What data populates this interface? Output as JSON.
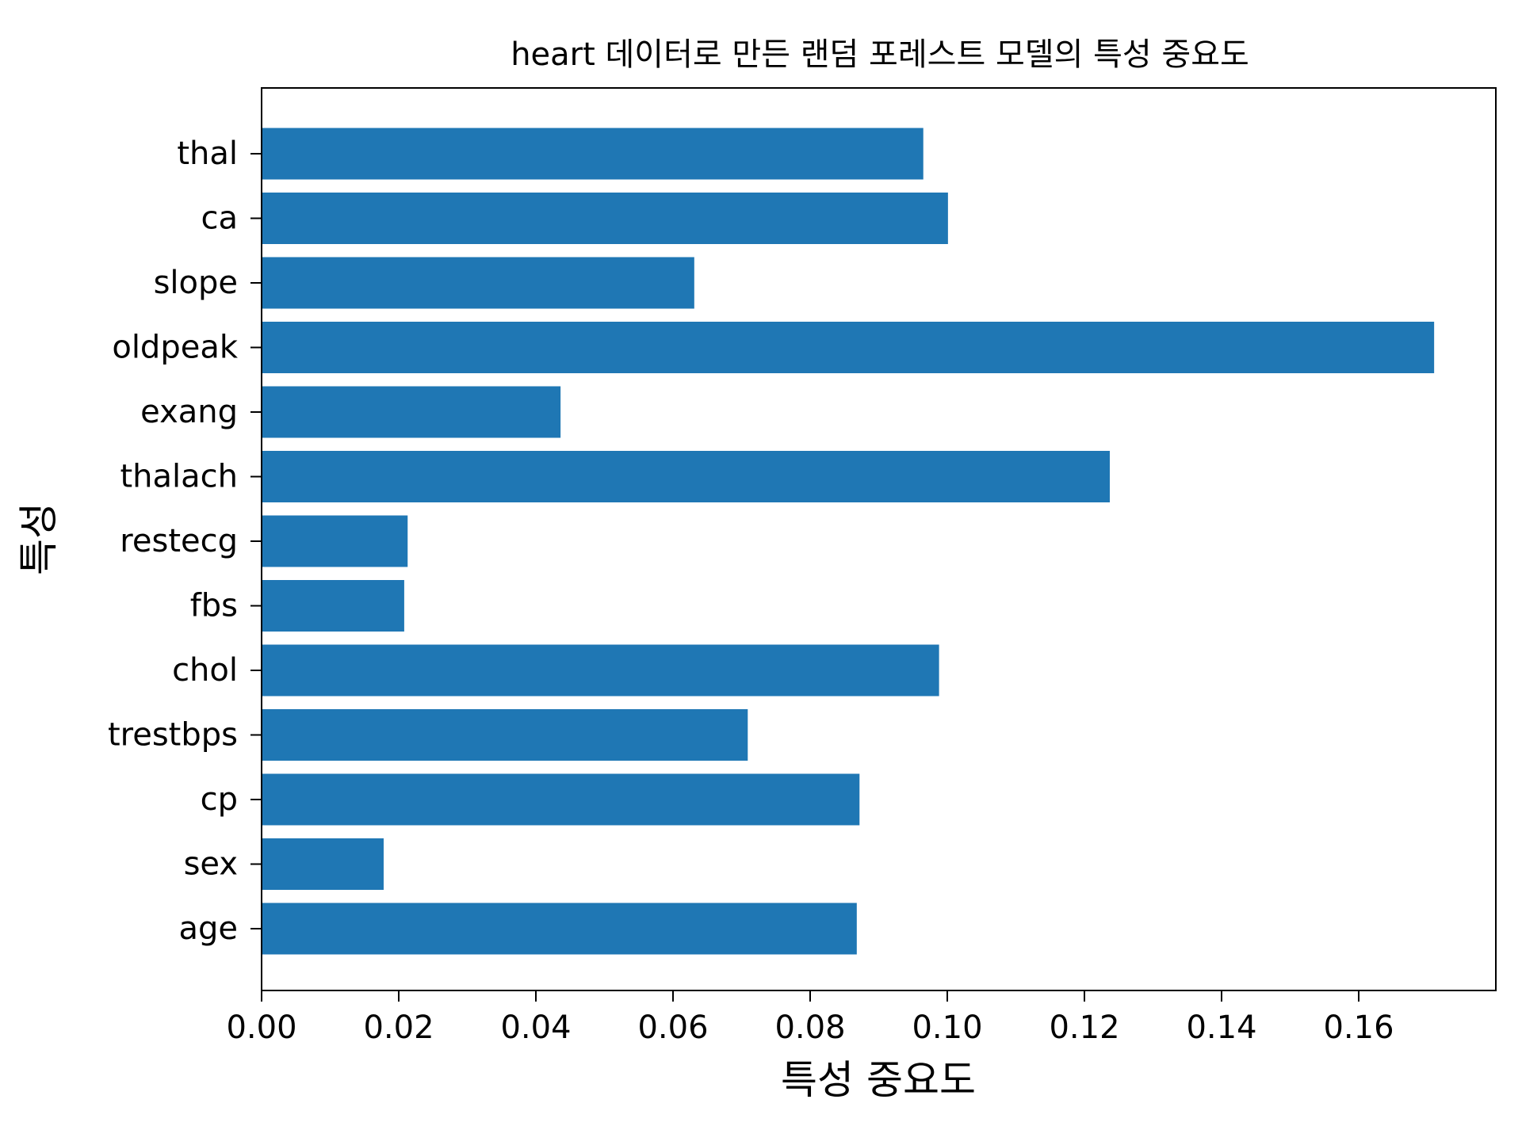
{
  "chart_data": {
    "type": "bar",
    "orientation": "horizontal",
    "title": "heart 데이터로 만든 랜덤 포레스트 모델의 특성 중요도",
    "xlabel": "특성 중요도",
    "ylabel": "특성",
    "categories": [
      "age",
      "sex",
      "cp",
      "trestbps",
      "chol",
      "fbs",
      "restecg",
      "thalach",
      "exang",
      "oldpeak",
      "slope",
      "ca",
      "thal"
    ],
    "values": [
      0.0868,
      0.0178,
      0.0872,
      0.0709,
      0.0988,
      0.0208,
      0.0213,
      0.1237,
      0.0436,
      0.171,
      0.0631,
      0.1001,
      0.0965
    ],
    "xlim": [
      0.0,
      0.18
    ],
    "xticks": [
      "0.00",
      "0.02",
      "0.04",
      "0.06",
      "0.08",
      "0.10",
      "0.12",
      "0.14",
      "0.16"
    ],
    "bar_color": "#1f77b4",
    "grid": false,
    "legend": false
  }
}
